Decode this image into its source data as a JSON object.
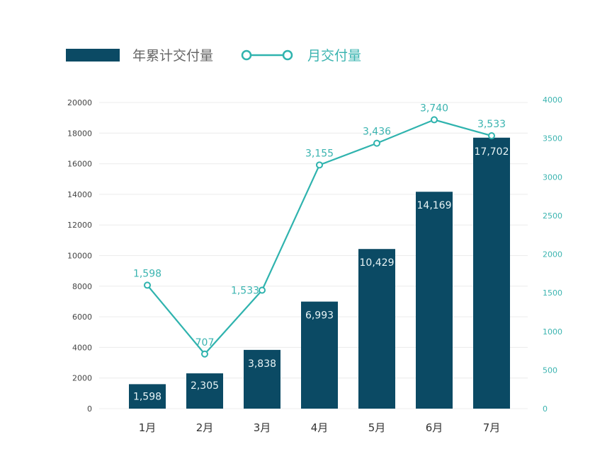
{
  "chart_data": {
    "type": "bar+line",
    "categories": [
      "1月",
      "2月",
      "3月",
      "4月",
      "5月",
      "6月",
      "7月"
    ],
    "series": [
      {
        "name": "年累计交付量",
        "type": "bar",
        "axis": "left",
        "values": [
          1598,
          2305,
          3838,
          6993,
          10429,
          14169,
          17702
        ],
        "labels": [
          "1,598",
          "2,305",
          "3,838",
          "6,993",
          "10,429",
          "14,169",
          "17,702"
        ]
      },
      {
        "name": "月交付量",
        "type": "line",
        "axis": "right",
        "values": [
          1598,
          707,
          1533,
          3155,
          3436,
          3740,
          3533
        ],
        "labels": [
          "1,598",
          "707",
          "1,533",
          "3,155",
          "3,436",
          "3,740",
          "3,533"
        ]
      }
    ],
    "left_axis": {
      "ylim": [
        0,
        20000
      ],
      "ticks": [
        "0",
        "2000",
        "4000",
        "6000",
        "8000",
        "10000",
        "12000",
        "14000",
        "16000",
        "18000",
        "20000"
      ]
    },
    "right_axis": {
      "ylim": [
        0,
        4000
      ],
      "ticks": [
        "0",
        "500",
        "1000",
        "1500",
        "2000",
        "2500",
        "3000",
        "3500",
        "4000"
      ]
    },
    "grid": true,
    "legend_position": "top-left",
    "colors": {
      "bar": "#0b4a64",
      "line": "#2fb3ae",
      "right_axis": "#3bb4b0",
      "grid": "#ececec"
    }
  }
}
